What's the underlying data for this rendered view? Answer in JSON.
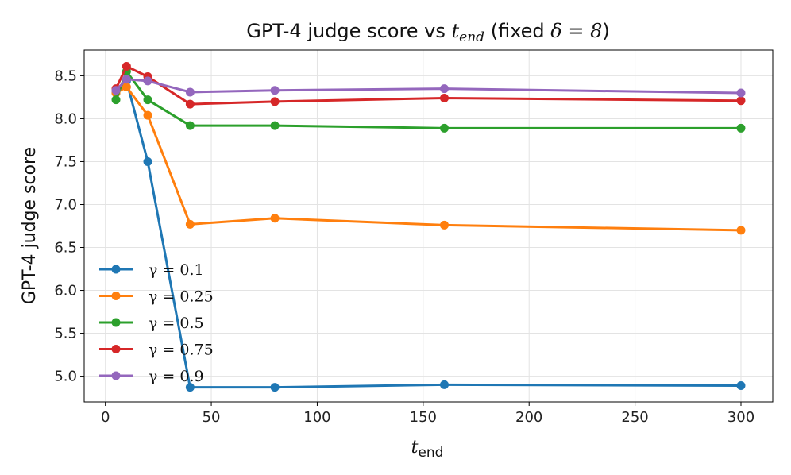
{
  "chart_data": {
    "type": "line",
    "title": "GPT-4 judge score vs t_end (fixed δ = 8)",
    "title_parts": {
      "prefix": "GPT-4 judge score vs ",
      "var": "t",
      "var_sub": "end",
      "suffix_open": " (fixed ",
      "delta_expr": "δ = 8",
      "suffix_close": ")"
    },
    "xlabel": "t_end",
    "xlabel_parts": {
      "base": "t",
      "sub": "end"
    },
    "ylabel": "GPT-4 judge score",
    "xlim": [
      -10,
      315
    ],
    "ylim": [
      4.7,
      8.8
    ],
    "xticks": [
      0,
      50,
      100,
      150,
      200,
      250,
      300
    ],
    "yticks": [
      5.0,
      5.5,
      6.0,
      6.5,
      7.0,
      7.5,
      8.0,
      8.5
    ],
    "grid": true,
    "legend_position": "lower-left",
    "x": [
      5,
      10,
      20,
      40,
      80,
      160,
      300
    ],
    "series": [
      {
        "name": "γ = 0.1",
        "color": "#1f77b4",
        "values": [
          8.3,
          8.44,
          7.5,
          4.87,
          4.87,
          4.9,
          4.89
        ]
      },
      {
        "name": "γ = 0.25",
        "color": "#ff7f0e",
        "values": [
          8.3,
          8.37,
          8.04,
          6.77,
          6.84,
          6.76,
          6.7
        ]
      },
      {
        "name": "γ = 0.5",
        "color": "#2ca02c",
        "values": [
          8.22,
          8.55,
          8.22,
          7.92,
          7.92,
          7.89,
          7.89
        ]
      },
      {
        "name": "γ = 0.75",
        "color": "#d62728",
        "values": [
          8.35,
          8.61,
          8.49,
          8.17,
          8.2,
          8.24,
          8.21
        ]
      },
      {
        "name": "γ = 0.9",
        "color": "#9467bd",
        "values": [
          8.33,
          8.46,
          8.44,
          8.31,
          8.33,
          8.35,
          8.3
        ]
      }
    ]
  }
}
